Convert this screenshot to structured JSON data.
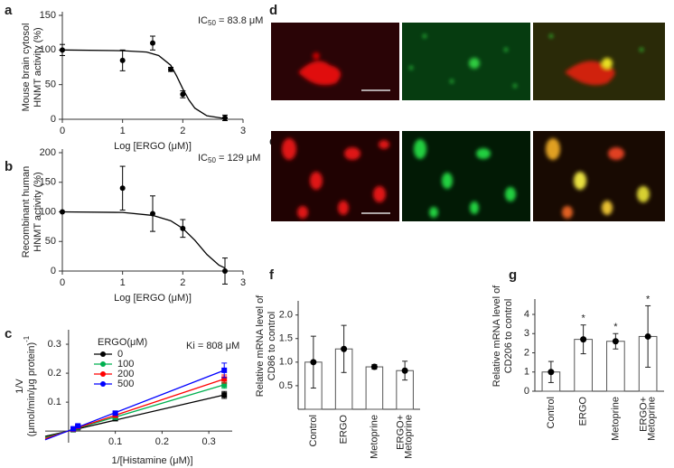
{
  "chart_data": [
    {
      "type": "scatter",
      "label": "a",
      "xlabel": "Log [ERGO (μM)]",
      "ylabel": [
        "Mouse brain cytosol",
        "HNMT activity (%)"
      ],
      "annotation": [
        "IC",
        "50",
        " = 83.8 μM"
      ],
      "xlim": [
        0,
        3
      ],
      "xticks": [
        0,
        1,
        2,
        3
      ],
      "ylim": [
        0,
        150
      ],
      "yticks": [
        0,
        50,
        100,
        150
      ],
      "x": [
        0,
        1,
        1.5,
        1.8,
        2,
        2.7
      ],
      "values": [
        100,
        85,
        110,
        72,
        36,
        2
      ],
      "errors": [
        8,
        15,
        10,
        3,
        5,
        4
      ],
      "color": "#000000",
      "curve": {
        "x": [
          0,
          1,
          1.4,
          1.6,
          1.8,
          1.9,
          2,
          2.1,
          2.2,
          2.4,
          2.7
        ],
        "values": [
          100,
          99,
          97,
          92,
          78,
          62,
          44,
          28,
          16,
          5,
          1
        ]
      }
    },
    {
      "type": "scatter",
      "label": "b",
      "xlabel": "Log [ERGO (μM)]",
      "ylabel": [
        "Recombinant human",
        "HNMT activity (%)"
      ],
      "annotation": [
        "IC",
        "50",
        " = 129 μM"
      ],
      "xlim": [
        0,
        3
      ],
      "xticks": [
        0,
        1,
        2,
        3
      ],
      "ylim": [
        0,
        200
      ],
      "yticks": [
        0,
        50,
        100,
        150,
        200
      ],
      "x": [
        0,
        1,
        1.5,
        2,
        2.7
      ],
      "values": [
        100,
        140,
        97,
        72,
        0
      ],
      "errors": [
        0,
        37,
        30,
        15,
        22
      ],
      "color": "#000000",
      "curve": {
        "x": [
          0,
          1,
          1.5,
          1.8,
          2,
          2.2,
          2.4,
          2.6,
          2.7
        ],
        "values": [
          100,
          99,
          94,
          85,
          72,
          52,
          28,
          10,
          5
        ]
      }
    },
    {
      "type": "line",
      "label": "c",
      "xlabel": "1/[Histamine (μM)]",
      "ylabel": [
        "1/V",
        "(μmol/min/μg protein)",
        "-1"
      ],
      "annotation": "Ki = 808 μM",
      "legend_title": "ERGO(μM)",
      "xlim": [
        -0.05,
        0.35
      ],
      "xticks": [
        0.1,
        0.2,
        0.3
      ],
      "ylim": [
        -0.04,
        0.35
      ],
      "yticks": [
        0.1,
        0.2,
        0.3
      ],
      "x": [
        0.01,
        0.02,
        0.1,
        0.333
      ],
      "fit_x": [
        -0.05,
        0.333
      ],
      "series": [
        {
          "name": "0",
          "color": "#000000",
          "values": [
            0.005,
            0.012,
            0.043,
            0.125
          ],
          "errors": [
            0.003,
            0.003,
            0.004,
            0.012
          ],
          "fit_values": [
            -0.018,
            0.125
          ]
        },
        {
          "name": "100",
          "color": "#00b050",
          "values": [
            0.006,
            0.014,
            0.048,
            0.16
          ],
          "errors": [
            0.003,
            0.003,
            0.004,
            0.012
          ],
          "fit_values": [
            -0.023,
            0.16
          ]
        },
        {
          "name": "200",
          "color": "#ff0000",
          "values": [
            0.007,
            0.016,
            0.055,
            0.18
          ],
          "errors": [
            0.003,
            0.003,
            0.005,
            0.014
          ],
          "fit_values": [
            -0.026,
            0.18
          ]
        },
        {
          "name": "500",
          "color": "#0000ff",
          "values": [
            0.008,
            0.018,
            0.062,
            0.21
          ],
          "errors": [
            0.004,
            0.004,
            0.005,
            0.025
          ],
          "fit_values": [
            -0.03,
            0.21
          ]
        }
      ]
    },
    {
      "type": "bar",
      "label": "f",
      "ylabel": [
        "Relative mRNA level of",
        "CD86 to control"
      ],
      "categories": [
        [
          "Control"
        ],
        [
          "ERGO"
        ],
        [
          "Metoprine"
        ],
        [
          "ERGO+",
          "Metoprine"
        ]
      ],
      "values": [
        1.0,
        1.28,
        0.9,
        0.82
      ],
      "errors": [
        0.55,
        0.5,
        0.05,
        0.2
      ],
      "ylim": [
        0,
        2.3
      ],
      "yticks": [
        0.5,
        {
          "value": 1,
          "label": "1.0"
        },
        1.5,
        {
          "value": 2,
          "label": "2.0"
        }
      ],
      "color": "#ffffff"
    },
    {
      "type": "bar",
      "label": "g",
      "ylabel": [
        "Relative mRNA level of",
        "CD206 to control"
      ],
      "categories": [
        [
          "Control"
        ],
        [
          "ERGO"
        ],
        [
          "Metoprine"
        ],
        [
          "ERGO+",
          "Metoprine"
        ]
      ],
      "values": [
        1.0,
        2.7,
        2.6,
        2.85
      ],
      "errors": [
        0.55,
        0.75,
        0.4,
        1.6
      ],
      "significance": [
        null,
        "*",
        "*",
        "*"
      ],
      "ylim": [
        0,
        4.8
      ],
      "yticks": [
        0,
        1,
        2,
        3,
        4
      ],
      "color": "#ffffff"
    }
  ],
  "images": [
    {
      "label": "d"
    },
    {
      "label": "e"
    }
  ]
}
